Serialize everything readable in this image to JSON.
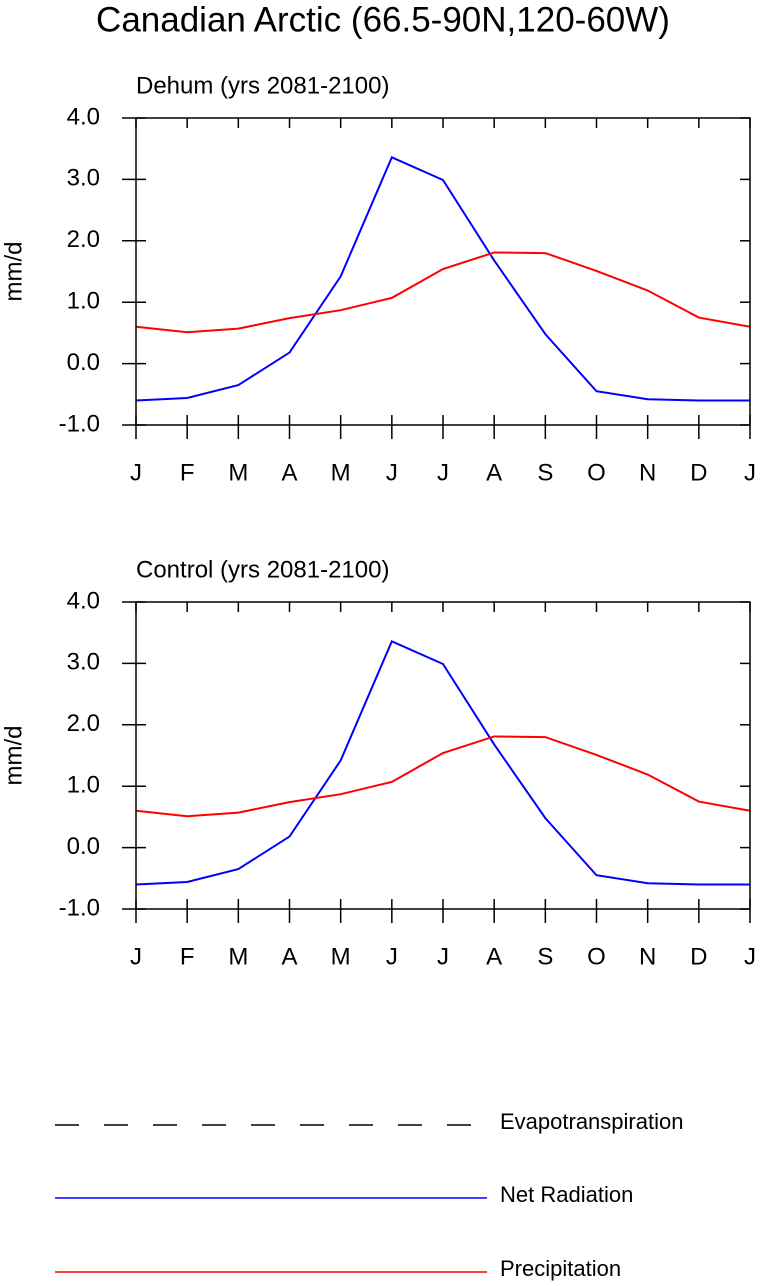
{
  "title": "Canadian Arctic (66.5-90N,120-60W)",
  "legend": [
    {
      "name": "Evapotranspiration",
      "color": "#000000",
      "line_style": "dashed"
    },
    {
      "name": "Net Radiation",
      "color": "#0000ff",
      "line_style": "solid"
    },
    {
      "name": "Precipitation",
      "color": "#ff0000",
      "line_style": "solid"
    }
  ],
  "chart_data": [
    {
      "type": "line",
      "subtitle": "Dehum (yrs 2081-2100)",
      "ylabel": "mm/d",
      "categories": [
        "J",
        "F",
        "M",
        "A",
        "M",
        "J",
        "J",
        "A",
        "S",
        "O",
        "N",
        "D",
        "J"
      ],
      "series": [
        {
          "color": "#0000ff",
          "values": [
            -0.6,
            -0.56,
            -0.35,
            0.18,
            1.42,
            3.36,
            2.99,
            1.68,
            0.48,
            -0.45,
            -0.58,
            -0.6,
            -0.6
          ]
        },
        {
          "color": "#ff0000",
          "values": [
            0.6,
            0.51,
            0.57,
            0.74,
            0.87,
            1.07,
            1.54,
            1.81,
            1.8,
            1.51,
            1.19,
            0.75,
            0.6
          ]
        }
      ],
      "ylim": [
        -1,
        4
      ],
      "yticks": [
        {
          "value": -1,
          "label": "-1.0"
        },
        {
          "value": 0,
          "label": "0.0"
        },
        {
          "value": 1,
          "label": "1.0"
        },
        {
          "value": 2,
          "label": "2.0"
        },
        {
          "value": 3,
          "label": "3.0"
        },
        {
          "value": 4,
          "label": "4.0"
        }
      ]
    },
    {
      "type": "line",
      "subtitle": "Control (yrs 2081-2100)",
      "ylabel": "mm/d",
      "categories": [
        "J",
        "F",
        "M",
        "A",
        "M",
        "J",
        "J",
        "A",
        "S",
        "O",
        "N",
        "D",
        "J"
      ],
      "series": [
        {
          "color": "#0000ff",
          "values": [
            -0.6,
            -0.56,
            -0.35,
            0.18,
            1.42,
            3.36,
            2.99,
            1.68,
            0.48,
            -0.45,
            -0.58,
            -0.6,
            -0.6
          ]
        },
        {
          "color": "#ff0000",
          "values": [
            0.6,
            0.51,
            0.57,
            0.74,
            0.87,
            1.07,
            1.54,
            1.81,
            1.8,
            1.51,
            1.19,
            0.75,
            0.6
          ]
        }
      ],
      "ylim": [
        -1,
        4
      ],
      "yticks": [
        {
          "value": -1,
          "label": "-1.0"
        },
        {
          "value": 0,
          "label": "0.0"
        },
        {
          "value": 1,
          "label": "1.0"
        },
        {
          "value": 2,
          "label": "2.0"
        },
        {
          "value": 3,
          "label": "3.0"
        },
        {
          "value": 4,
          "label": "4.0"
        }
      ]
    }
  ]
}
